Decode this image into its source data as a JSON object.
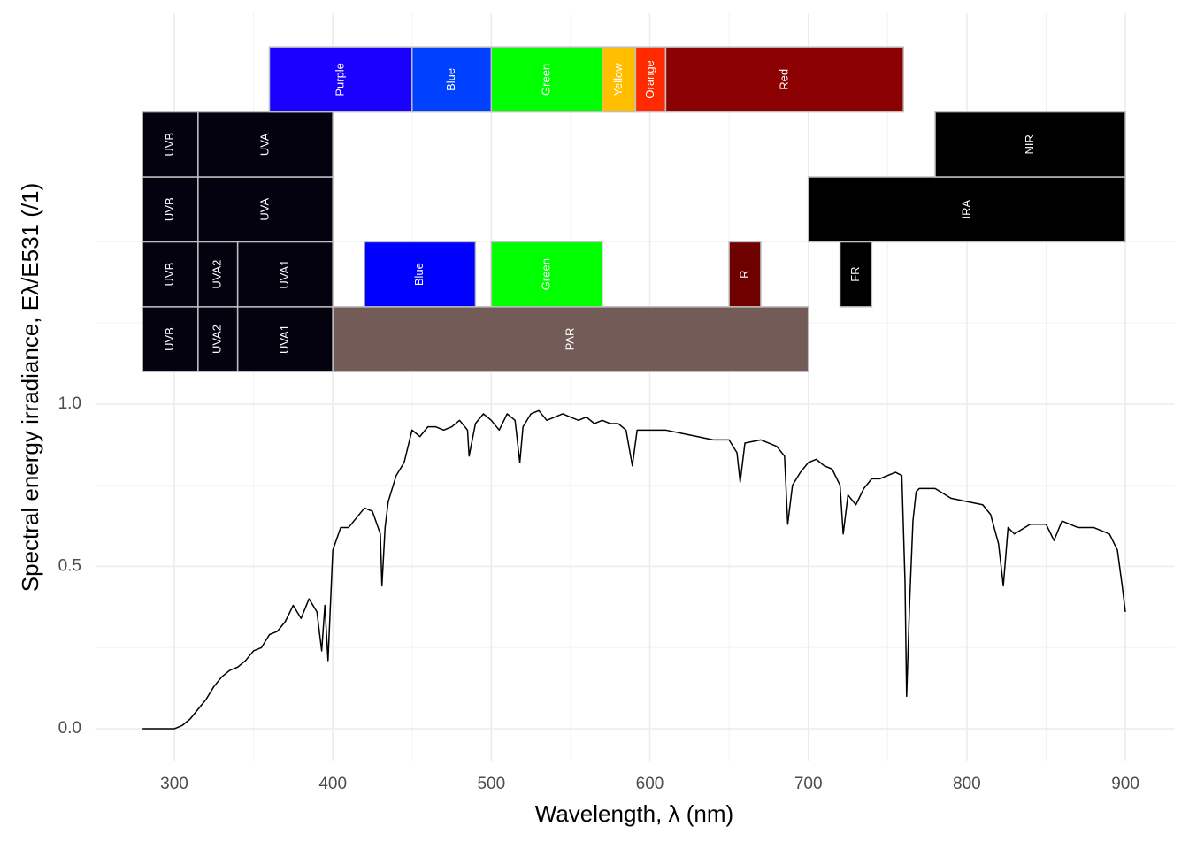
{
  "chart_data": {
    "type": "line",
    "x_label": "Wavelength, λ (nm)",
    "y_label": "Spectral energy irradiance, Eλ/E531 (/1)",
    "xlim": [
      250,
      931
    ],
    "ylim": [
      -0.098,
      2.204
    ],
    "xticks": [
      300,
      400,
      500,
      600,
      700,
      800,
      900
    ],
    "yticks": [
      {
        "value": 0,
        "label": "0.0"
      },
      0.5,
      {
        "value": 1,
        "label": "1.0"
      }
    ],
    "xminor": [
      350,
      450,
      550,
      650,
      750,
      850
    ],
    "yminor": [
      0.25,
      0.75,
      1.25,
      1.5
    ],
    "grid": true,
    "series": [
      {
        "color": "#000000",
        "x": [
          280,
          290,
          300,
          305,
          310,
          315,
          320,
          325,
          330,
          335,
          340,
          345,
          350,
          355,
          360,
          365,
          370,
          375,
          380,
          385,
          390,
          393,
          395,
          397,
          400,
          405,
          410,
          415,
          420,
          425,
          430,
          431,
          433,
          435,
          440,
          445,
          450,
          455,
          460,
          465,
          470,
          475,
          480,
          485,
          486,
          490,
          495,
          500,
          505,
          510,
          515,
          518,
          520,
          525,
          530,
          535,
          540,
          545,
          550,
          555,
          560,
          565,
          570,
          575,
          580,
          585,
          589,
          592,
          600,
          610,
          620,
          630,
          640,
          650,
          655,
          657,
          660,
          670,
          680,
          685,
          687,
          690,
          695,
          700,
          705,
          710,
          715,
          720,
          722,
          725,
          730,
          735,
          740,
          745,
          750,
          755,
          759,
          761,
          762,
          764,
          766,
          768,
          770,
          780,
          790,
          800,
          810,
          815,
          820,
          823,
          826,
          830,
          840,
          850,
          855,
          860,
          870,
          880,
          890,
          895,
          898,
          900
        ],
        "values": [
          0,
          0,
          0,
          0.01,
          0.03,
          0.06,
          0.09,
          0.13,
          0.16,
          0.18,
          0.19,
          0.21,
          0.24,
          0.25,
          0.29,
          0.3,
          0.33,
          0.38,
          0.34,
          0.4,
          0.36,
          0.24,
          0.38,
          0.21,
          0.55,
          0.62,
          0.62,
          0.65,
          0.68,
          0.67,
          0.6,
          0.44,
          0.62,
          0.7,
          0.78,
          0.82,
          0.92,
          0.9,
          0.93,
          0.93,
          0.92,
          0.93,
          0.95,
          0.92,
          0.84,
          0.94,
          0.97,
          0.95,
          0.92,
          0.97,
          0.95,
          0.82,
          0.93,
          0.97,
          0.98,
          0.95,
          0.96,
          0.97,
          0.96,
          0.95,
          0.96,
          0.94,
          0.95,
          0.94,
          0.94,
          0.92,
          0.81,
          0.92,
          0.92,
          0.92,
          0.91,
          0.9,
          0.89,
          0.89,
          0.85,
          0.76,
          0.88,
          0.89,
          0.87,
          0.84,
          0.63,
          0.75,
          0.79,
          0.82,
          0.83,
          0.81,
          0.8,
          0.75,
          0.6,
          0.72,
          0.69,
          0.74,
          0.77,
          0.77,
          0.78,
          0.79,
          0.78,
          0.45,
          0.1,
          0.4,
          0.64,
          0.73,
          0.74,
          0.74,
          0.71,
          0.7,
          0.69,
          0.66,
          0.57,
          0.44,
          0.62,
          0.6,
          0.63,
          0.63,
          0.58,
          0.64,
          0.62,
          0.62,
          0.6,
          0.55,
          0.44,
          0.36
        ]
      }
    ],
    "band_rows": [
      [
        {
          "name": "UVB",
          "start": 280,
          "end": 315,
          "color": "#04020f"
        },
        {
          "name": "UVA2",
          "start": 315,
          "end": 340,
          "color": "#04020f"
        },
        {
          "name": "UVA1",
          "start": 340,
          "end": 400,
          "color": "#04020f"
        },
        {
          "name": "PAR",
          "start": 400,
          "end": 700,
          "color": "#735c57"
        }
      ],
      [
        {
          "name": "UVB",
          "start": 280,
          "end": 315,
          "color": "#04020f"
        },
        {
          "name": "UVA2",
          "start": 315,
          "end": 340,
          "color": "#04020f"
        },
        {
          "name": "UVA1",
          "start": 340,
          "end": 400,
          "color": "#04020f"
        },
        {
          "name": "Blue",
          "start": 420,
          "end": 490,
          "color": "#0000ff"
        },
        {
          "name": "Green",
          "start": 500,
          "end": 570,
          "color": "#00ff00"
        },
        {
          "name": "R",
          "start": 650,
          "end": 670,
          "color": "#6e0000"
        },
        {
          "name": "FR",
          "start": 720,
          "end": 740,
          "color": "#000000"
        }
      ],
      [
        {
          "name": "UVB",
          "start": 280,
          "end": 315,
          "color": "#04020f"
        },
        {
          "name": "UVA",
          "start": 315,
          "end": 400,
          "color": "#04020f"
        },
        {
          "name": "IRA",
          "start": 700,
          "end": 900,
          "color": "#000000"
        }
      ],
      [
        {
          "name": "UVB",
          "start": 280,
          "end": 315,
          "color": "#04020f"
        },
        {
          "name": "UVA",
          "start": 315,
          "end": 400,
          "color": "#04020f"
        },
        {
          "name": "NIR",
          "start": 780,
          "end": 900,
          "color": "#000000"
        }
      ],
      [
        {
          "name": "Purple",
          "start": 360,
          "end": 450,
          "color": "#1a00ff"
        },
        {
          "name": "Blue",
          "start": 450,
          "end": 500,
          "color": "#0040ff"
        },
        {
          "name": "Green",
          "start": 500,
          "end": 570,
          "color": "#00ff00"
        },
        {
          "name": "Yellow",
          "start": 570,
          "end": 591,
          "color": "#ffbf00"
        },
        {
          "name": "Orange",
          "start": 591,
          "end": 610,
          "color": "#ff2a00"
        },
        {
          "name": "Red",
          "start": 610,
          "end": 760,
          "color": "#8b0000"
        }
      ]
    ]
  }
}
